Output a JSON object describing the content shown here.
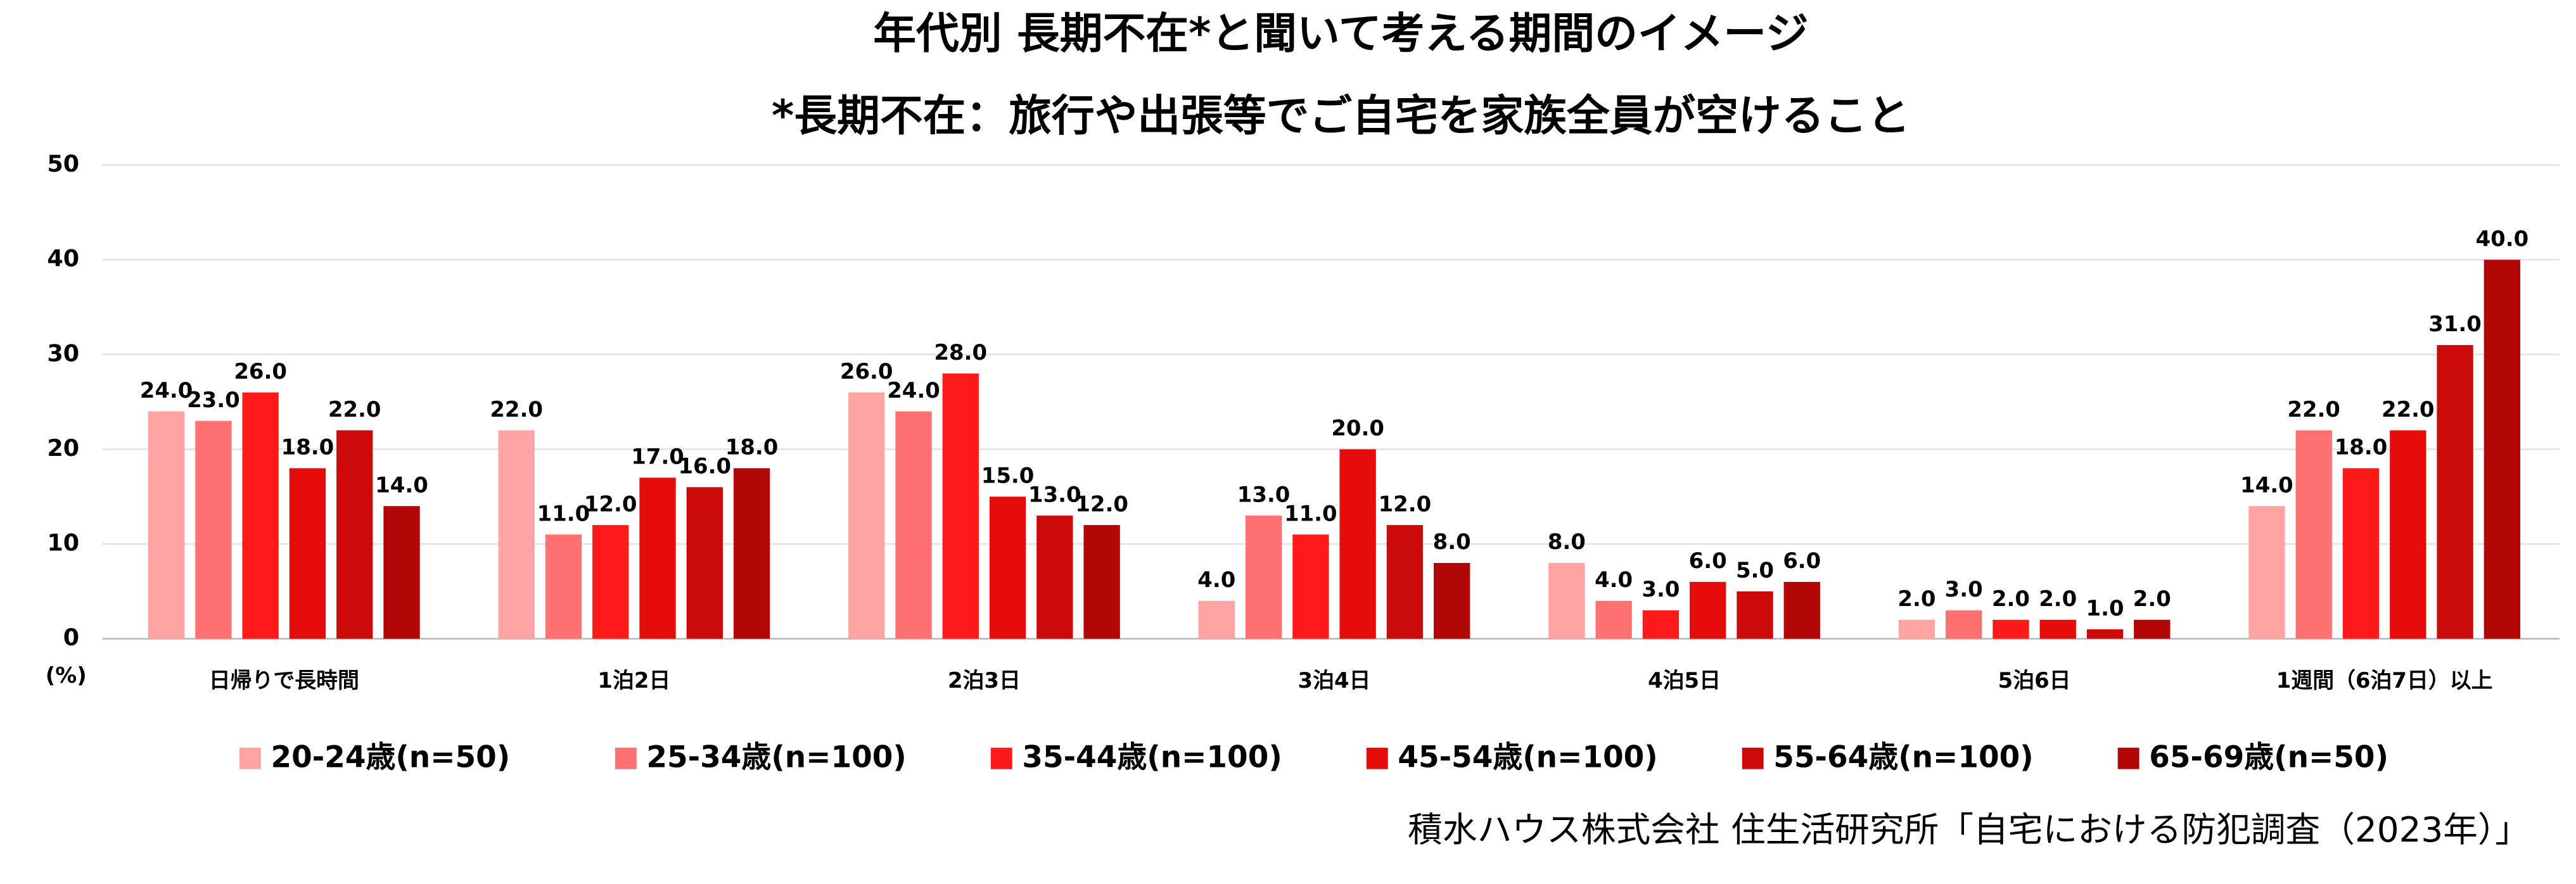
{
  "chart_data": {
    "type": "bar",
    "title": "年代別 長期不在*と聞いて考える期間のイメージ",
    "subtitle": "*長期不在：旅行や出張等でご自宅を家族全員が空けること",
    "y_label": "(%)",
    "source": "積水ハウス株式会社 住生活研究所「自宅における防犯調査（2023年）」",
    "categories": [
      "日帰りで長時間",
      "1泊2日",
      "2泊3日",
      "3泊4日",
      "4泊5日",
      "5泊6日",
      "1週間（6泊7日）以上"
    ],
    "series": [
      {
        "name": "20-24歳(n=50)",
        "color": "#ffa3a3",
        "values": [
          24,
          22,
          26,
          4,
          8,
          2,
          14
        ],
        "value_labels": [
          "24.0",
          "22.0",
          "26.0",
          "4.0",
          "8.0",
          "2.0",
          "14.0"
        ]
      },
      {
        "name": "25-34歳(n=100)",
        "color": "#ff7070",
        "values": [
          23,
          11,
          24,
          13,
          4,
          3,
          22
        ],
        "value_labels": [
          "23.0",
          "11.0",
          "24.0",
          "13.0",
          "4.0",
          "3.0",
          "22.0"
        ]
      },
      {
        "name": "35-44歳(n=100)",
        "color": "#ff1a1a",
        "values": [
          26,
          12,
          28,
          11,
          3,
          2,
          18
        ],
        "value_labels": [
          "26.0",
          "12.0",
          "28.0",
          "11.0",
          "3.0",
          "2.0",
          "18.0"
        ]
      },
      {
        "name": "45-54歳(n=100)",
        "color": "#e60c0c",
        "values": [
          18,
          17,
          15,
          20,
          6,
          2,
          22
        ],
        "value_labels": [
          "18.0",
          "17.0",
          "15.0",
          "20.0",
          "6.0",
          "2.0",
          "22.0"
        ]
      },
      {
        "name": "55-64歳(n=100)",
        "color": "#cc0a0a",
        "values": [
          22,
          16,
          13,
          12,
          5,
          1,
          31
        ],
        "value_labels": [
          "22.0",
          "16.0",
          "13.0",
          "12.0",
          "5.0",
          "1.0",
          "31.0"
        ]
      },
      {
        "name": "65-69歳(n=50)",
        "color": "#b30606",
        "values": [
          14,
          18,
          12,
          8,
          6,
          2,
          40
        ],
        "value_labels": [
          "14.0",
          "18.0",
          "12.0",
          "8.0",
          "6.0",
          "2.0",
          "40.0"
        ]
      }
    ],
    "ylim": [
      0,
      50
    ],
    "yticks": [
      0,
      10,
      20,
      30,
      40,
      50
    ],
    "grid": true
  }
}
